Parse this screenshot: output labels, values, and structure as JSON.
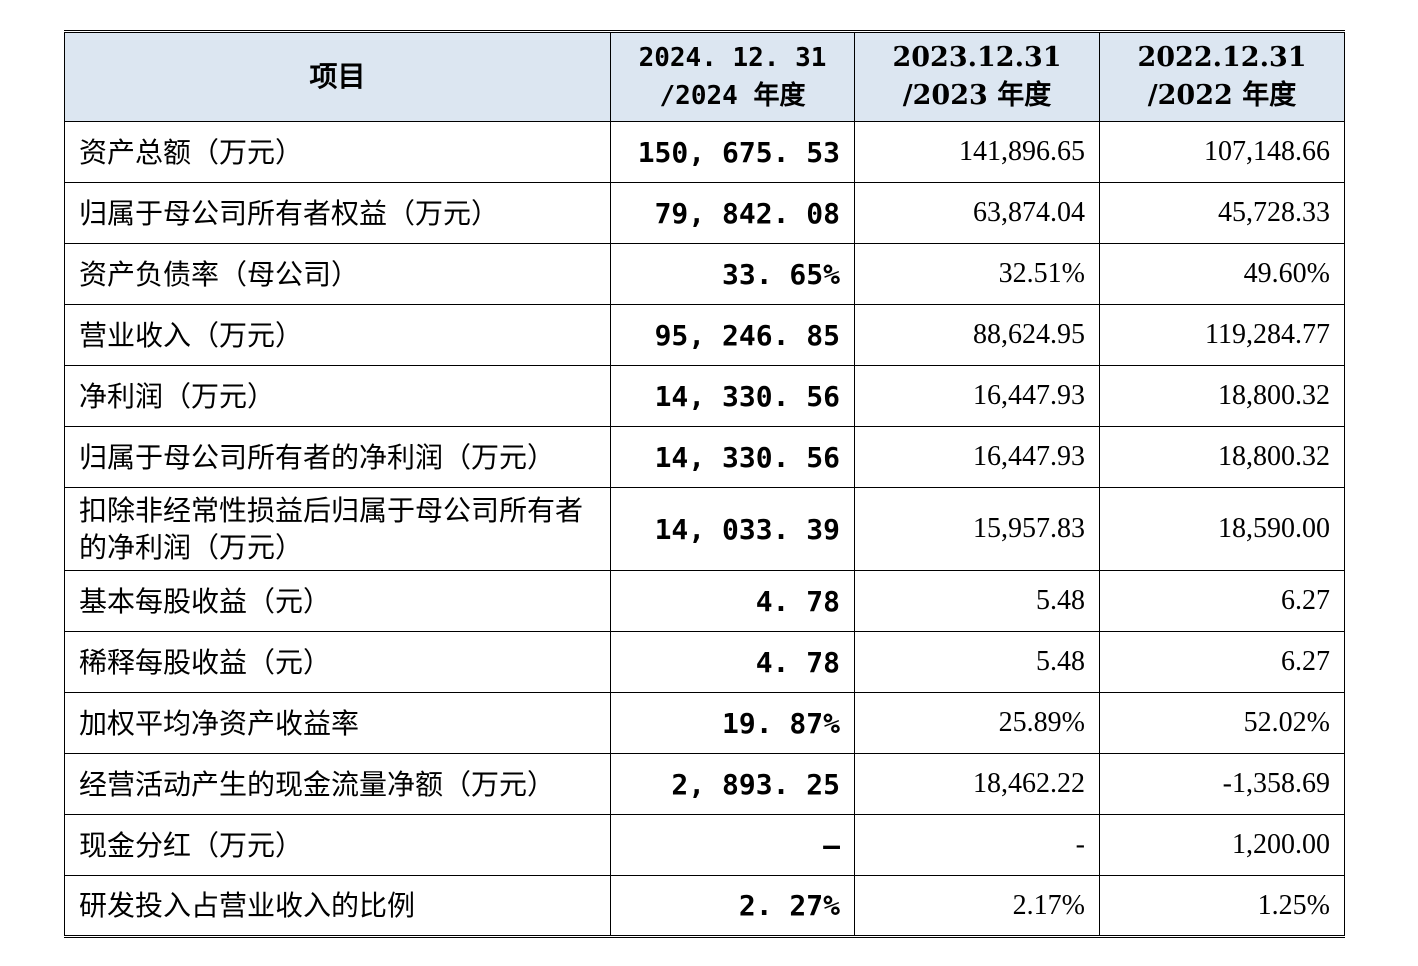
{
  "table": {
    "headers": {
      "item": "项目",
      "col_2024_line1": "2024. 12. 31",
      "col_2024_line2": "/2024 年度",
      "col_2023_line1": "2023.12.31",
      "col_2023_line2": "/2023 年度",
      "col_2022_line1": "2022.12.31",
      "col_2022_line2": "/2022 年度"
    },
    "rows": [
      {
        "label": "资产总额（万元）",
        "v2024": "150, 675. 53",
        "v2023": "141,896.65",
        "v2022": "107,148.66"
      },
      {
        "label": "归属于母公司所有者权益（万元）",
        "v2024": "79, 842. 08",
        "v2023": "63,874.04",
        "v2022": "45,728.33"
      },
      {
        "label": "资产负债率（母公司）",
        "v2024": "33. 65%",
        "v2023": "32.51%",
        "v2022": "49.60%"
      },
      {
        "label": "营业收入（万元）",
        "v2024": "95, 246. 85",
        "v2023": "88,624.95",
        "v2022": "119,284.77"
      },
      {
        "label": "净利润（万元）",
        "v2024": "14, 330. 56",
        "v2023": "16,447.93",
        "v2022": "18,800.32"
      },
      {
        "label": "归属于母公司所有者的净利润（万元）",
        "v2024": "14, 330. 56",
        "v2023": "16,447.93",
        "v2022": "18,800.32"
      },
      {
        "label": "扣除非经常性损益后归属于母公司所有者的净利润（万元）",
        "v2024": "14, 033. 39",
        "v2023": "15,957.83",
        "v2022": "18,590.00"
      },
      {
        "label": "基本每股收益（元）",
        "v2024": "4. 78",
        "v2023": "5.48",
        "v2022": "6.27"
      },
      {
        "label": "稀释每股收益（元）",
        "v2024": "4. 78",
        "v2023": "5.48",
        "v2022": "6.27"
      },
      {
        "label": "加权平均净资产收益率",
        "v2024": "19. 87%",
        "v2023": "25.89%",
        "v2022": "52.02%"
      },
      {
        "label": "经营活动产生的现金流量净额（万元）",
        "v2024": "2, 893. 25",
        "v2023": "18,462.22",
        "v2022": "-1,358.69"
      },
      {
        "label": "现金分红（万元）",
        "v2024": "–",
        "v2023": "-",
        "v2022": "1,200.00"
      },
      {
        "label": "研发投入占营业收入的比例",
        "v2024": "2. 27%",
        "v2023": "2.17%",
        "v2022": "1.25%"
      }
    ]
  }
}
